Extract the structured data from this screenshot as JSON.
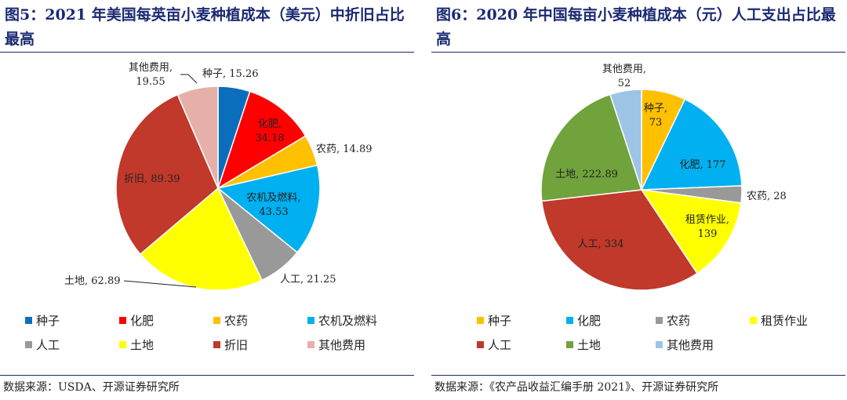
{
  "chart_data": [
    {
      "type": "pie",
      "title": "图5：2021 年美国每英亩小麦种植成本（美元）中折旧占比最高",
      "source": "数据来源：USDA、开源证券研究所",
      "unit": "美元",
      "slices": [
        {
          "name": "种子",
          "value": 15.26,
          "label": "种子, 15.26",
          "color": "#0a6ebd"
        },
        {
          "name": "化肥",
          "value": 34.18,
          "label": "化肥, 34.18",
          "color": "#ff0000"
        },
        {
          "name": "农药",
          "value": 14.89,
          "label": "农药, 14.89",
          "color": "#ffc000"
        },
        {
          "name": "农机及燃料",
          "value": 43.53,
          "label": "农机及燃料, 43.53",
          "color": "#00b0f0"
        },
        {
          "name": "人工",
          "value": 21.25,
          "label": "人工, 21.25",
          "color": "#999999"
        },
        {
          "name": "土地",
          "value": 62.89,
          "label": "土地, 62.89",
          "color": "#ffff00"
        },
        {
          "name": "折旧",
          "value": 89.39,
          "label": "折旧, 89.39",
          "color": "#c0392b"
        },
        {
          "name": "其他费用",
          "value": 19.55,
          "label": "其他费用, 19.55",
          "color": "#e6b0aa"
        }
      ],
      "legend": [
        "种子",
        "化肥",
        "农药",
        "农机及燃料",
        "人工",
        "土地",
        "折旧",
        "其他费用"
      ],
      "legend_position": "bottom"
    },
    {
      "type": "pie",
      "title": "图6：2020 年中国每亩小麦种植成本（元）人工支出占比最高",
      "source": "数据来源：《农产品收益汇编手册 2021》、开源证券研究所",
      "unit": "元",
      "slices": [
        {
          "name": "种子",
          "value": 73,
          "label": "种子, 73",
          "color": "#ffc000"
        },
        {
          "name": "化肥",
          "value": 177,
          "label": "化肥, 177",
          "color": "#00b0f0"
        },
        {
          "name": "农药",
          "value": 28,
          "label": "农药, 28",
          "color": "#999999"
        },
        {
          "name": "租赁作业",
          "value": 139,
          "label": "租赁作业, 139",
          "color": "#ffff00"
        },
        {
          "name": "人工",
          "value": 334,
          "label": "人工, 334",
          "color": "#c0392b"
        },
        {
          "name": "土地",
          "value": 222.89,
          "label": "土地, 222.89",
          "color": "#70a33b"
        },
        {
          "name": "其他费用",
          "value": 52,
          "label": "其他费用, 52",
          "color": "#9dc3e6"
        }
      ],
      "legend": [
        "种子",
        "化肥",
        "农药",
        "租赁作业",
        "人工",
        "土地",
        "其他费用"
      ],
      "legend_position": "bottom"
    }
  ]
}
